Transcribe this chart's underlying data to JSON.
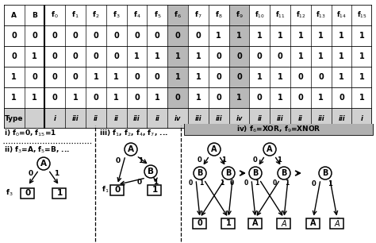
{
  "table_headers": [
    "A",
    "B",
    "f$_0$",
    "f$_1$",
    "f$_2$",
    "f$_3$",
    "f$_4$",
    "f$_5$",
    "f$_6$",
    "f$_7$",
    "f$_8$",
    "f$_9$",
    "f$_{10}$",
    "f$_{11}$",
    "f$_{12}$",
    "f$_{13}$",
    "f$_{14}$",
    "f$_{15}$"
  ],
  "table_rows": [
    [
      "0",
      "0",
      "0",
      "0",
      "0",
      "0",
      "0",
      "0",
      "0",
      "0",
      "1",
      "1",
      "1",
      "1",
      "1",
      "1",
      "1",
      "1"
    ],
    [
      "0",
      "1",
      "0",
      "0",
      "0",
      "0",
      "1",
      "1",
      "1",
      "1",
      "0",
      "0",
      "0",
      "0",
      "1",
      "1",
      "1",
      "1"
    ],
    [
      "1",
      "0",
      "0",
      "0",
      "1",
      "1",
      "0",
      "0",
      "1",
      "1",
      "0",
      "0",
      "1",
      "1",
      "0",
      "0",
      "1",
      "1"
    ],
    [
      "1",
      "1",
      "0",
      "1",
      "0",
      "1",
      "0",
      "1",
      "0",
      "1",
      "0",
      "1",
      "0",
      "1",
      "0",
      "1",
      "0",
      "1"
    ]
  ],
  "type_row": [
    "Type",
    "",
    "i",
    "iii",
    "ii",
    "ii",
    "iii",
    "ii",
    "iv",
    "iii",
    "iii",
    "iv",
    "ii",
    "iii",
    "ii",
    "iii",
    "iii",
    "i"
  ],
  "shaded_cols": [
    8,
    11
  ],
  "bg_shaded": "#b8b8b8",
  "bg_type": "#d0d0d0"
}
